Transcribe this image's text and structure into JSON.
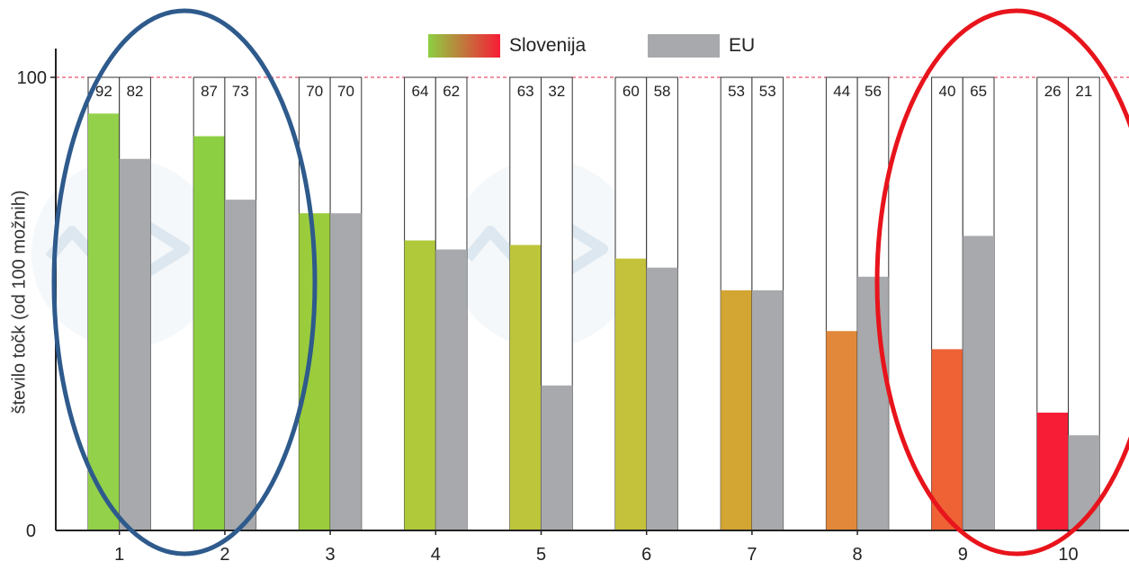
{
  "chart_data": {
    "type": "bar",
    "categories": [
      "1",
      "2",
      "3",
      "4",
      "5",
      "6",
      "7",
      "8",
      "9",
      "10"
    ],
    "series": [
      {
        "name": "Slovenija",
        "values": [
          92,
          87,
          70,
          64,
          63,
          60,
          53,
          44,
          40,
          26
        ],
        "colors": [
          "#93d14a",
          "#8dcf42",
          "#9bcc3c",
          "#afc93b",
          "#bdc63a",
          "#c4c23a",
          "#d3a533",
          "#e2883a",
          "#ee6235",
          "#f71d36"
        ]
      },
      {
        "name": "EU",
        "values": [
          82,
          73,
          70,
          62,
          32,
          58,
          53,
          56,
          65,
          21
        ],
        "color": "#a7a9ac"
      }
    ],
    "ylabel": "število točk (od 100 možnih)",
    "xlabel": "",
    "ylim": [
      0,
      100
    ],
    "yticks": [
      "0",
      "100"
    ],
    "reference_line": {
      "value": 100,
      "color": "#e0284a",
      "style": "dashed"
    },
    "legend_position": "top-center",
    "grid": false,
    "annotations": [
      {
        "shape": "ellipse",
        "color": "#2e5a8c",
        "around_categories": [
          "1",
          "2"
        ]
      },
      {
        "shape": "ellipse",
        "color": "#e8141c",
        "around_categories": [
          "9",
          "10"
        ]
      }
    ],
    "watermark": "AV logo"
  }
}
